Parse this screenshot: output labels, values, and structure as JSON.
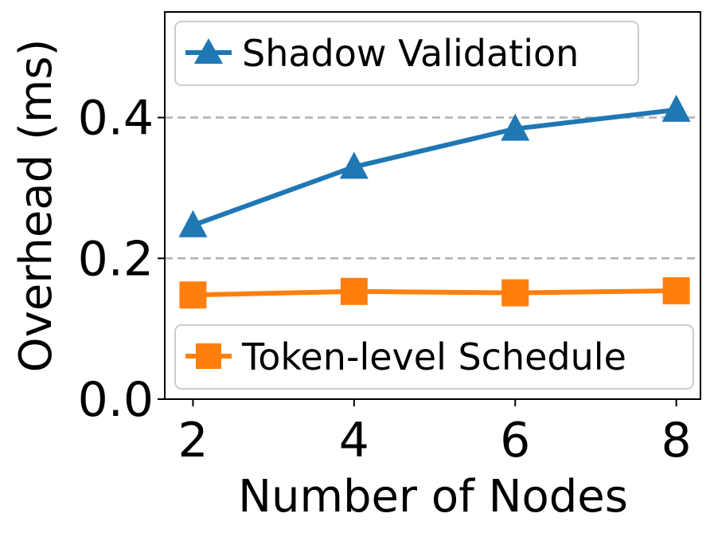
{
  "chart_data": {
    "type": "line",
    "xlabel": "Number of Nodes",
    "ylabel": "Overhead (ms)",
    "x": [
      2,
      4,
      6,
      8
    ],
    "xticks": [
      "2",
      "4",
      "6",
      "8"
    ],
    "yticks": [
      "0.0",
      "0.2",
      "0.4"
    ],
    "xlim": [
      1.65,
      8.3
    ],
    "ylim": [
      0,
      0.55
    ],
    "grid": "horizontal dashed",
    "series": [
      {
        "name": "Shadow Validation",
        "values": [
          0.247,
          0.33,
          0.384,
          0.411
        ],
        "color": "#1f77b4",
        "marker": "triangle"
      },
      {
        "name": "Token-level Schedule",
        "values": [
          0.148,
          0.153,
          0.151,
          0.154
        ],
        "color": "#ff7f0e",
        "marker": "square"
      }
    ],
    "legends": [
      {
        "placement": "top-left",
        "series": "Shadow Validation"
      },
      {
        "placement": "bottom-left",
        "series": "Token-level Schedule"
      }
    ]
  }
}
